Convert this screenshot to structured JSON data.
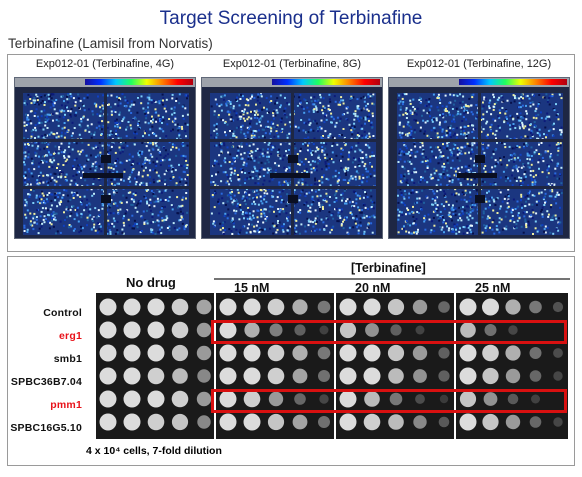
{
  "title": "Target Screening of Terbinafine",
  "subtitle": "Terbinafine (Lamisil from Norvatis)",
  "experiments": [
    {
      "label": "Exp012-01 (Terbinafine, 4G)"
    },
    {
      "label": "Exp012-01 (Terbinafine, 8G)"
    },
    {
      "label": "Exp012-01 (Terbinafine, 12G)"
    }
  ],
  "spot_assay": {
    "no_drug_label": "No drug",
    "group_label": "[Terbinafine]",
    "concentrations": [
      "15 nM",
      "20 nM",
      "25 nM"
    ],
    "strains": [
      {
        "name": "Control",
        "color": "#111111"
      },
      {
        "name": "erg1",
        "color": "#e8121a"
      },
      {
        "name": "smb1",
        "color": "#111111"
      },
      {
        "name": "SPBC36B7.04",
        "color": "#111111"
      },
      {
        "name": "pmm1",
        "color": "#e8121a"
      },
      {
        "name": "SPBC16G5.10",
        "color": "#111111"
      }
    ],
    "highlighted_rows": [
      "erg1",
      "pmm1"
    ],
    "footer": "4 x 10⁴ cells, 7-fold dilution",
    "highlight_color": "#dd1111"
  }
}
